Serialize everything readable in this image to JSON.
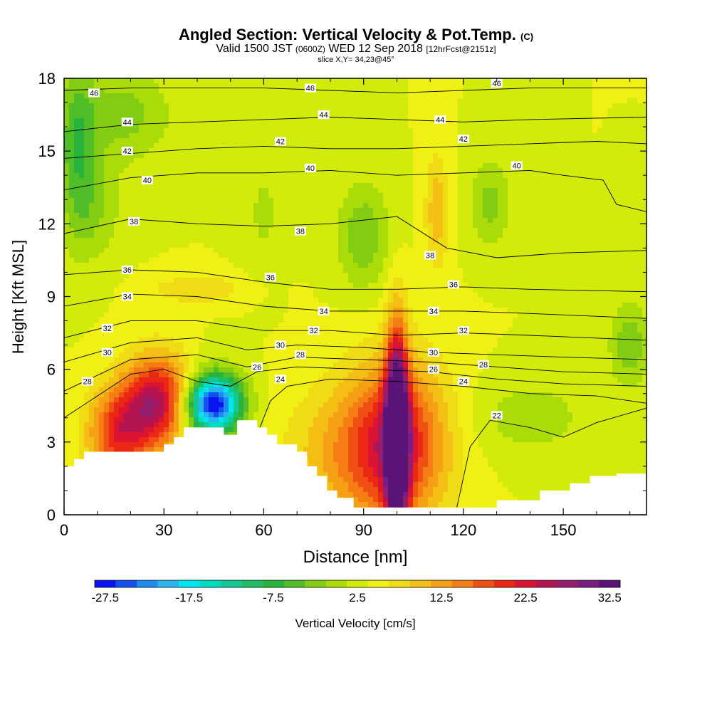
{
  "header": {
    "title_main": "Angled Section: Vertical Velocity & Pot.Temp.",
    "title_unit": "(C)",
    "valid_a": "Valid 1500 JST",
    "valid_b": "(0600Z)",
    "valid_c": "WED 12 Sep 2018",
    "valid_d": "[12hrFcst@2151z]",
    "slice": "slice X,Y= 34,23@45°"
  },
  "colorbar": {
    "label": "Vertical Velocity [cm/s]",
    "tick_labels": [
      "-27.5",
      "-17.5",
      "-7.5",
      "2.5",
      "12.5",
      "22.5",
      "32.5"
    ],
    "colors": [
      "#0a14f0",
      "#1450f0",
      "#1e8cf0",
      "#28b4f0",
      "#00e6f0",
      "#00dcc0",
      "#14c896",
      "#1ebe64",
      "#28b43c",
      "#50be28",
      "#82cd14",
      "#aadc0a",
      "#d2eb0a",
      "#f0f014",
      "#f0dc14",
      "#f5be14",
      "#f5a014",
      "#f57d14",
      "#f05014",
      "#eb2814",
      "#dc1432",
      "#b41450",
      "#961e6e",
      "#781e82",
      "#5a1478"
    ],
    "value_min": -32.5,
    "value_step": 2.5
  },
  "chart_data": {
    "type": "heatmap",
    "title": "Angled Section: Vertical Velocity & Pot.Temp. (C)",
    "xlabel": "Distance [nm]",
    "ylabel": "Height [Kft MSL]",
    "xlim": [
      0,
      175
    ],
    "ylim": [
      0,
      18
    ],
    "x_ticks": [
      0,
      30,
      60,
      90,
      120,
      150
    ],
    "y_ticks": [
      0,
      3,
      6,
      9,
      12,
      15,
      18
    ],
    "x_tick_labels": [
      "0",
      "30",
      "60",
      "90",
      "120",
      "150"
    ],
    "y_tick_labels": [
      "0",
      "3",
      "6",
      "9",
      "12",
      "15",
      "18"
    ],
    "background_level": 0,
    "velocity_features": [
      {
        "x": 29,
        "y": 4.6,
        "rx": 11,
        "ry": 1.9,
        "peak": 25
      },
      {
        "x": 16,
        "y": 3.3,
        "rx": 9,
        "ry": 1.8,
        "peak": 15
      },
      {
        "x": 45,
        "y": 4.6,
        "rx": 8,
        "ry": 1.1,
        "peak": -27
      },
      {
        "x": 40,
        "y": 4.3,
        "rx": 12,
        "ry": 1.9,
        "peak": -10
      },
      {
        "x": 100,
        "y": 3.2,
        "rx": 3.3,
        "ry": 4.2,
        "peak": 35
      },
      {
        "x": 100,
        "y": 3.0,
        "rx": 15,
        "ry": 3.4,
        "peak": 16
      },
      {
        "x": 86,
        "y": 2.5,
        "rx": 20,
        "ry": 2.8,
        "peak": 7
      },
      {
        "x": 112,
        "y": 12.5,
        "rx": 3.5,
        "ry": 2.3,
        "peak": 7
      },
      {
        "x": 40,
        "y": 9.3,
        "rx": 14,
        "ry": 0.6,
        "peak": 5
      },
      {
        "x": 4,
        "y": 15,
        "rx": 6,
        "ry": 3.5,
        "peak": -9
      },
      {
        "x": 18,
        "y": 16.5,
        "rx": 14,
        "ry": 2,
        "peak": -6
      },
      {
        "x": 90,
        "y": 11.5,
        "rx": 8,
        "ry": 2.2,
        "peak": -7
      },
      {
        "x": 128,
        "y": 12.8,
        "rx": 6,
        "ry": 1.8,
        "peak": -6
      },
      {
        "x": 170,
        "y": 7,
        "rx": 6,
        "ry": 1.7,
        "peak": -7
      },
      {
        "x": 10,
        "y": 12.5,
        "rx": 8,
        "ry": 2,
        "peak": -4
      },
      {
        "x": 140,
        "y": 4,
        "rx": 18,
        "ry": 1.6,
        "peak": -4
      },
      {
        "x": 60,
        "y": 12.5,
        "rx": 6,
        "ry": 2.5,
        "peak": -3
      }
    ],
    "terrain_height": [
      [
        0,
        2
      ],
      [
        3,
        2
      ],
      [
        3,
        2.3
      ],
      [
        6,
        2.3
      ],
      [
        6,
        2.6
      ],
      [
        30,
        2.6
      ],
      [
        30,
        2.9
      ],
      [
        33,
        2.9
      ],
      [
        33,
        3.2
      ],
      [
        36,
        3.2
      ],
      [
        36,
        3.6
      ],
      [
        48,
        3.6
      ],
      [
        48,
        3.3
      ],
      [
        52,
        3.3
      ],
      [
        52,
        3.9
      ],
      [
        58,
        3.9
      ],
      [
        58,
        3.6
      ],
      [
        61,
        3.6
      ],
      [
        61,
        3.3
      ],
      [
        64,
        3.3
      ],
      [
        64,
        2.9
      ],
      [
        70,
        2.9
      ],
      [
        70,
        2.6
      ],
      [
        73,
        2.6
      ],
      [
        73,
        2.0
      ],
      [
        76,
        2.0
      ],
      [
        76,
        1.6
      ],
      [
        79,
        1.6
      ],
      [
        79,
        1.0
      ],
      [
        82,
        1.0
      ],
      [
        82,
        0.7
      ],
      [
        87,
        0.7
      ],
      [
        87,
        0.3
      ],
      [
        130,
        0.3
      ],
      [
        130,
        0.6
      ],
      [
        143,
        0.6
      ],
      [
        143,
        1.0
      ],
      [
        152,
        1.0
      ],
      [
        152,
        1.3
      ],
      [
        158,
        1.3
      ],
      [
        158,
        1.6
      ],
      [
        166,
        1.6
      ],
      [
        166,
        1.7
      ],
      [
        175,
        1.7
      ]
    ],
    "isotherms": [
      {
        "label": "22",
        "points": [
          [
            118,
            0.3
          ],
          [
            122,
            2.8
          ],
          [
            128,
            3.9
          ],
          [
            140,
            3.6
          ],
          [
            150,
            3.2
          ],
          [
            160,
            3.8
          ],
          [
            175,
            4.4
          ]
        ]
      },
      {
        "label": "24",
        "points": [
          [
            58,
            3.3
          ],
          [
            62,
            4.7
          ],
          [
            67,
            5.3
          ],
          [
            80,
            5.6
          ],
          [
            100,
            5.5
          ],
          [
            120,
            5.3
          ],
          [
            140,
            5.0
          ],
          [
            160,
            4.9
          ],
          [
            175,
            4.6
          ]
        ]
      },
      {
        "label": "26",
        "points": [
          [
            0,
            4.0
          ],
          [
            20,
            5.8
          ],
          [
            30,
            6.0
          ],
          [
            40,
            5.5
          ],
          [
            50,
            5.3
          ],
          [
            58,
            5.9
          ],
          [
            70,
            6.1
          ],
          [
            90,
            6.0
          ],
          [
            110,
            5.9
          ],
          [
            130,
            5.6
          ],
          [
            150,
            5.4
          ],
          [
            175,
            5.3
          ]
        ]
      },
      {
        "label": "28",
        "points": [
          [
            0,
            5.1
          ],
          [
            20,
            6.4
          ],
          [
            40,
            6.6
          ],
          [
            55,
            6.1
          ],
          [
            70,
            6.5
          ],
          [
            90,
            6.4
          ],
          [
            110,
            6.3
          ],
          [
            130,
            6.1
          ],
          [
            150,
            5.9
          ],
          [
            175,
            5.8
          ]
        ]
      },
      {
        "label": "30",
        "points": [
          [
            0,
            6.3
          ],
          [
            20,
            7.1
          ],
          [
            40,
            7.3
          ],
          [
            55,
            6.8
          ],
          [
            70,
            7.0
          ],
          [
            90,
            6.9
          ],
          [
            110,
            6.7
          ],
          [
            130,
            6.6
          ],
          [
            150,
            6.5
          ],
          [
            175,
            6.4
          ]
        ]
      },
      {
        "label": "32",
        "points": [
          [
            0,
            7.3
          ],
          [
            20,
            8.0
          ],
          [
            40,
            8.0
          ],
          [
            60,
            7.6
          ],
          [
            80,
            7.6
          ],
          [
            100,
            7.4
          ],
          [
            120,
            7.5
          ],
          [
            140,
            7.4
          ],
          [
            175,
            7.2
          ]
        ]
      },
      {
        "label": "34",
        "points": [
          [
            0,
            8.6
          ],
          [
            20,
            9.1
          ],
          [
            40,
            9.0
          ],
          [
            60,
            8.6
          ],
          [
            80,
            8.4
          ],
          [
            100,
            8.4
          ],
          [
            120,
            8.4
          ],
          [
            140,
            8.3
          ],
          [
            175,
            8.1
          ]
        ]
      },
      {
        "label": "36",
        "points": [
          [
            0,
            9.9
          ],
          [
            20,
            10.1
          ],
          [
            40,
            10.0
          ],
          [
            60,
            9.6
          ],
          [
            80,
            9.3
          ],
          [
            100,
            9.3
          ],
          [
            120,
            9.4
          ],
          [
            140,
            9.3
          ],
          [
            175,
            9.2
          ]
        ]
      },
      {
        "label": "38",
        "points": [
          [
            0,
            11.6
          ],
          [
            20,
            12.2
          ],
          [
            40,
            12.0
          ],
          [
            60,
            11.9
          ],
          [
            80,
            12.0
          ],
          [
            100,
            12.3
          ],
          [
            115,
            11.0
          ],
          [
            130,
            10.6
          ],
          [
            150,
            10.8
          ],
          [
            175,
            10.9
          ]
        ]
      },
      {
        "label": "40",
        "points": [
          [
            0,
            13.4
          ],
          [
            20,
            13.9
          ],
          [
            40,
            14.1
          ],
          [
            60,
            14.1
          ],
          [
            80,
            14.2
          ],
          [
            100,
            14.0
          ],
          [
            120,
            14.1
          ],
          [
            140,
            14.2
          ],
          [
            150,
            14.0
          ],
          [
            162,
            13.8
          ],
          [
            166,
            12.8
          ],
          [
            175,
            12.5
          ]
        ]
      },
      {
        "label": "42",
        "points": [
          [
            0,
            14.7
          ],
          [
            20,
            14.9
          ],
          [
            40,
            15.1
          ],
          [
            60,
            15.2
          ],
          [
            80,
            15.1
          ],
          [
            100,
            15.1
          ],
          [
            120,
            15.2
          ],
          [
            140,
            15.3
          ],
          [
            160,
            15.4
          ],
          [
            175,
            15.3
          ]
        ]
      },
      {
        "label": "44",
        "points": [
          [
            0,
            15.8
          ],
          [
            20,
            16.1
          ],
          [
            40,
            16.2
          ],
          [
            60,
            16.3
          ],
          [
            80,
            16.4
          ],
          [
            100,
            16.3
          ],
          [
            120,
            16.2
          ],
          [
            140,
            16.3
          ],
          [
            175,
            16.4
          ]
        ]
      },
      {
        "label": "46",
        "points": [
          [
            0,
            17.5
          ],
          [
            20,
            17.6
          ],
          [
            40,
            17.6
          ],
          [
            60,
            17.6
          ],
          [
            80,
            17.5
          ],
          [
            100,
            17.4
          ],
          [
            120,
            17.5
          ],
          [
            140,
            17.6
          ],
          [
            175,
            17.6
          ]
        ]
      }
    ],
    "isotherm_labels": [
      {
        "text": "46",
        "x": 9,
        "y": 17.4
      },
      {
        "text": "46",
        "x": 74,
        "y": 17.6
      },
      {
        "text": "46",
        "x": 130,
        "y": 17.8
      },
      {
        "text": "44",
        "x": 19,
        "y": 16.2
      },
      {
        "text": "44",
        "x": 78,
        "y": 16.5
      },
      {
        "text": "44",
        "x": 113,
        "y": 16.3
      },
      {
        "text": "42",
        "x": 19,
        "y": 15.0
      },
      {
        "text": "42",
        "x": 65,
        "y": 15.4
      },
      {
        "text": "42",
        "x": 120,
        "y": 15.5
      },
      {
        "text": "40",
        "x": 25,
        "y": 13.8
      },
      {
        "text": "40",
        "x": 74,
        "y": 14.3
      },
      {
        "text": "40",
        "x": 136,
        "y": 14.4
      },
      {
        "text": "38",
        "x": 21,
        "y": 12.1
      },
      {
        "text": "38",
        "x": 71,
        "y": 11.7
      },
      {
        "text": "38",
        "x": 110,
        "y": 10.7
      },
      {
        "text": "36",
        "x": 19,
        "y": 10.1
      },
      {
        "text": "36",
        "x": 62,
        "y": 9.8
      },
      {
        "text": "36",
        "x": 117,
        "y": 9.5
      },
      {
        "text": "34",
        "x": 19,
        "y": 9.0
      },
      {
        "text": "34",
        "x": 78,
        "y": 8.4
      },
      {
        "text": "34",
        "x": 111,
        "y": 8.4
      },
      {
        "text": "32",
        "x": 13,
        "y": 7.7
      },
      {
        "text": "32",
        "x": 75,
        "y": 7.6
      },
      {
        "text": "32",
        "x": 120,
        "y": 7.6
      },
      {
        "text": "30",
        "x": 13,
        "y": 6.7
      },
      {
        "text": "30",
        "x": 65,
        "y": 7.0
      },
      {
        "text": "30",
        "x": 111,
        "y": 6.7
      },
      {
        "text": "28",
        "x": 7,
        "y": 5.5
      },
      {
        "text": "28",
        "x": 71,
        "y": 6.6
      },
      {
        "text": "28",
        "x": 126,
        "y": 6.2
      },
      {
        "text": "26",
        "x": 58,
        "y": 6.1
      },
      {
        "text": "26",
        "x": 111,
        "y": 6.0
      },
      {
        "text": "24",
        "x": 65,
        "y": 5.6
      },
      {
        "text": "24",
        "x": 120,
        "y": 5.5
      },
      {
        "text": "22",
        "x": 130,
        "y": 4.1
      }
    ]
  }
}
